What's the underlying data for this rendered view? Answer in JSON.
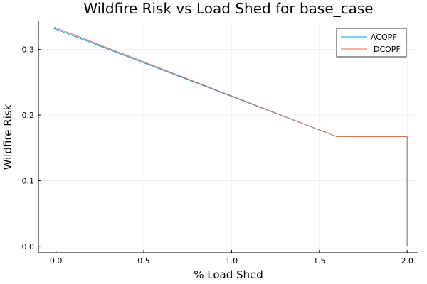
{
  "chart_data": {
    "type": "line",
    "title": "Wildfire Risk vs Load Shed for base_case",
    "xlabel": "% Load Shed",
    "ylabel": "Wildfire Risk",
    "xlim": [
      -0.1,
      2.06
    ],
    "ylim": [
      -0.01,
      0.343
    ],
    "grid": true,
    "legend_position": "top-right",
    "x_ticks": [
      {
        "value": 0.0,
        "label": "0.0"
      },
      {
        "value": 0.5,
        "label": "0.5"
      },
      {
        "value": 1.0,
        "label": "1.0"
      },
      {
        "value": 1.5,
        "label": "1.5"
      },
      {
        "value": 2.0,
        "label": "2.0"
      }
    ],
    "y_ticks": [
      {
        "value": 0.0,
        "label": "0.0"
      },
      {
        "value": 0.1,
        "label": "0.1"
      },
      {
        "value": 0.2,
        "label": "0.2"
      },
      {
        "value": 0.3,
        "label": "0.3"
      }
    ],
    "series": [
      {
        "name": "ACOPF",
        "color": "#009AFA",
        "x": [
          -0.02,
          1.6,
          2.0,
          2.0
        ],
        "y": [
          0.333,
          0.167,
          0.167,
          0.0
        ]
      },
      {
        "name": "DCOPF",
        "color": "#E36F47",
        "x": [
          -0.01,
          1.6,
          2.0,
          2.0
        ],
        "y": [
          0.334,
          0.167,
          0.167,
          0.0
        ]
      }
    ]
  }
}
